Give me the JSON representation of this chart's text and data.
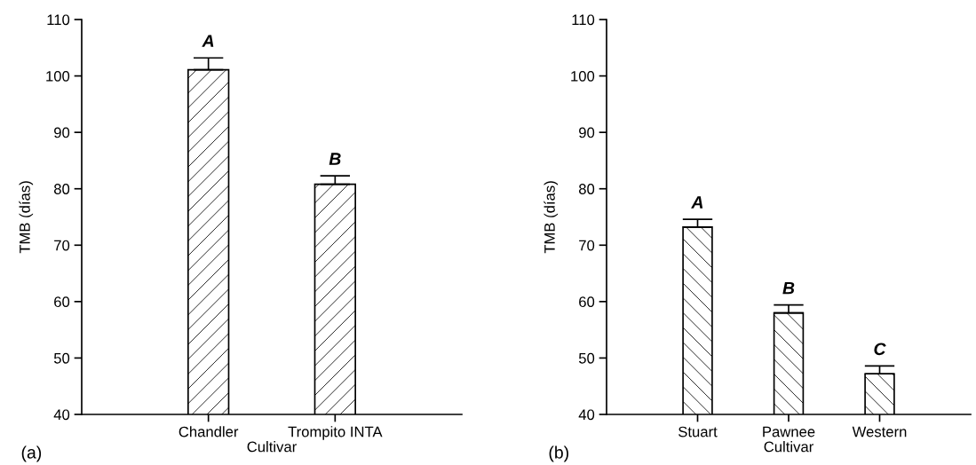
{
  "chart_data": [
    {
      "type": "bar",
      "xlabel": "Cultivar",
      "ylabel": "TMB (días)",
      "categories": [
        "Chandler",
        "Trompito INTA"
      ],
      "values": [
        101.1,
        80.8
      ],
      "errors": [
        2.1,
        1.5
      ],
      "color": "#ffffff",
      "ylim": [
        40,
        110
      ],
      "yticks": [
        40,
        50,
        60,
        70,
        80,
        90,
        100,
        110
      ],
      "grid": false,
      "legend": false,
      "annotations": [
        {
          "text": "A",
          "x": "Chandler",
          "y": 103.2
        },
        {
          "text": "B",
          "x": "Trompito INTA",
          "y": 82.3
        },
        "(a)"
      ]
    },
    {
      "type": "bar",
      "xlabel": "Cultivar",
      "ylabel": "TMB (días)",
      "categories": [
        "Stuart",
        "Pawnee",
        "Western"
      ],
      "values": [
        73.2,
        58.0,
        47.2
      ],
      "errors": [
        1.4,
        1.4,
        1.4
      ],
      "color": "#ffffff",
      "ylim": [
        40,
        110
      ],
      "yticks": [
        40,
        50,
        60,
        70,
        80,
        90,
        100,
        110
      ],
      "grid": false,
      "legend": false,
      "annotations": [
        {
          "text": "A",
          "x": "Stuart",
          "y": 74.6
        },
        {
          "text": "B",
          "x": "Pawnee",
          "y": 59.4
        },
        {
          "text": "C",
          "x": "Western",
          "y": 48.6
        },
        "(b)"
      ]
    }
  ]
}
